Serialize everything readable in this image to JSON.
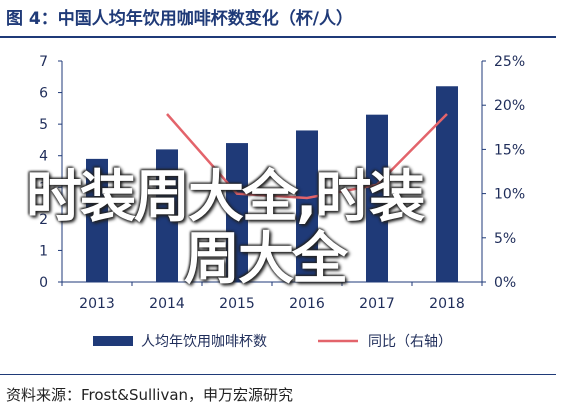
{
  "page": {
    "title": "图 4：中国人均年饮用咖啡杯数变化（杯/人）",
    "source": "资料来源：Frost&Sullivan，申万宏源研究",
    "watermark_line1": "时装周大全,时装",
    "watermark_line2": "周大全"
  },
  "chart_data": {
    "type": "bar",
    "categories": [
      "2013",
      "2014",
      "2015",
      "2016",
      "2017",
      "2018"
    ],
    "series": [
      {
        "name": "人均年饮用咖啡杯数",
        "type": "bar",
        "axis": "left",
        "color": "#1f3a78",
        "values": [
          3.9,
          4.2,
          4.4,
          4.8,
          5.3,
          6.2
        ]
      },
      {
        "name": "同比（右轴）",
        "type": "line",
        "axis": "right",
        "color": "#e3646b",
        "values": [
          null,
          19,
          10,
          9.5,
          11,
          19
        ]
      }
    ],
    "left_axis": {
      "ylim": [
        0,
        7
      ],
      "ticks": [
        "0",
        "1",
        "2",
        "3",
        "4",
        "5",
        "6",
        "7"
      ]
    },
    "right_axis": {
      "ylim": [
        0,
        25
      ],
      "ticks": [
        "0%",
        "5%",
        "10%",
        "15%",
        "20%",
        "25%"
      ]
    },
    "grid": false,
    "legend_position": "bottom"
  }
}
